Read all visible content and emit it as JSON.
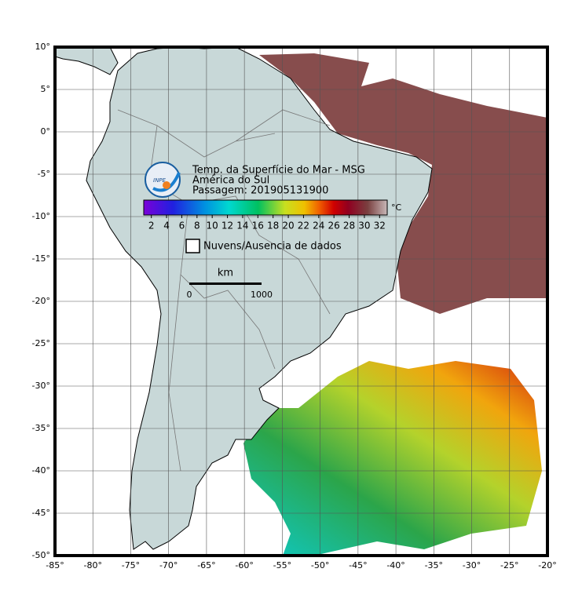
{
  "map": {
    "lon_lim": [
      -85,
      -20
    ],
    "lat_lim": [
      -50,
      10
    ],
    "lon_ticks": [
      {
        "value": -85,
        "label": "-85°"
      },
      {
        "value": -80,
        "label": "-80°"
      },
      {
        "value": -75,
        "label": "-75°"
      },
      {
        "value": -70,
        "label": "-70°"
      },
      {
        "value": -65,
        "label": "-65°"
      },
      {
        "value": -60,
        "label": "-60°"
      },
      {
        "value": -55,
        "label": "-55°"
      },
      {
        "value": -50,
        "label": "-50°"
      },
      {
        "value": -45,
        "label": "-45°"
      },
      {
        "value": -40,
        "label": "-40°"
      },
      {
        "value": -35,
        "label": "-35°"
      },
      {
        "value": -30,
        "label": "-30°"
      },
      {
        "value": -25,
        "label": "-25°"
      },
      {
        "value": -20,
        "label": "-20°"
      }
    ],
    "lat_ticks": [
      {
        "value": 10,
        "label": "10°"
      },
      {
        "value": 5,
        "label": "5°"
      },
      {
        "value": 0,
        "label": "0°"
      },
      {
        "value": -5,
        "label": "-5°"
      },
      {
        "value": -10,
        "label": "-10°"
      },
      {
        "value": -15,
        "label": "-15°"
      },
      {
        "value": -20,
        "label": "-20°"
      },
      {
        "value": -25,
        "label": "-25°"
      },
      {
        "value": -30,
        "label": "-30°"
      },
      {
        "value": -35,
        "label": "-35°"
      },
      {
        "value": -40,
        "label": "-40°"
      },
      {
        "value": -45,
        "label": "-45°"
      },
      {
        "value": -50,
        "label": "-50°"
      }
    ],
    "logo": "INPE",
    "title": [
      "Temp. da Superfície do Mar - MSG",
      "América do Sul",
      "Passagem: 201905131900"
    ],
    "colorbar": {
      "lim": [
        1,
        33
      ],
      "ticks": [
        2,
        4,
        6,
        8,
        10,
        12,
        14,
        16,
        18,
        20,
        22,
        24,
        26,
        28,
        30,
        32
      ],
      "unit": "°C"
    },
    "legend": "Nuvens/Ausencia de dados",
    "scale_bar": {
      "unit": "km",
      "start": "0",
      "end": "1000"
    }
  }
}
